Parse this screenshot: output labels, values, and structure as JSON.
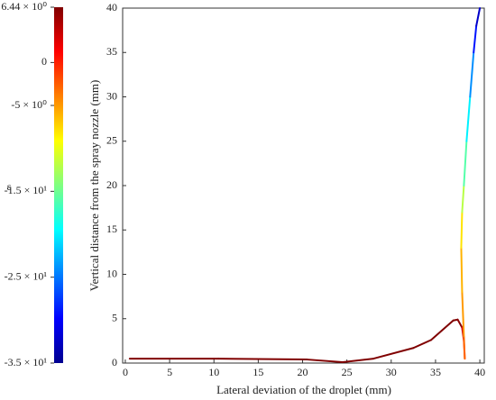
{
  "chart_data": {
    "type": "line",
    "x_label": "Lateral deviation of the droplet (mm)",
    "y_label": "Vertical distance from the spray nozzle (mm)",
    "colorbar_label": "ε",
    "x": [
      0.5,
      10.5,
      20.5,
      24.5,
      28,
      32.5,
      34.5,
      37,
      37.5,
      38,
      38.2,
      38.3,
      38.2,
      38,
      37.9,
      38,
      38.2,
      38.5,
      38.9,
      39.3,
      39.6,
      40
    ],
    "y": [
      0.5,
      0.5,
      0.4,
      0.1,
      0.5,
      1.7,
      2.6,
      4.8,
      4.9,
      4,
      2.5,
      0.5,
      3,
      8,
      13,
      17,
      20,
      25,
      30,
      35,
      38,
      40
    ],
    "c": [
      6.44,
      6.44,
      6.44,
      6.44,
      6.44,
      6.44,
      6.44,
      6.44,
      6,
      3,
      0,
      -3,
      -5,
      -6,
      -8,
      -12,
      -16,
      -20,
      -24,
      -29,
      -32,
      -35
    ],
    "xlim": [
      -0.3,
      40.5
    ],
    "ylim": [
      0,
      40
    ],
    "xticks": [
      0,
      5,
      10,
      15,
      20,
      25,
      30,
      35,
      40
    ],
    "yticks": [
      0,
      5,
      10,
      15,
      20,
      25,
      30,
      35,
      40
    ],
    "clim": [
      -35,
      6.44
    ],
    "cticks": [
      {
        "value": 6.44,
        "label": "6.44 × 10⁰"
      },
      0,
      {
        "value": -5,
        "label": "-5 × 10⁰"
      },
      {
        "value": -15,
        "label": "-1.5 × 10¹"
      },
      {
        "value": -25,
        "label": "-2.5 × 10¹"
      },
      {
        "value": -35,
        "label": "-3.5 × 10¹"
      }
    ],
    "colormap": "jet"
  }
}
